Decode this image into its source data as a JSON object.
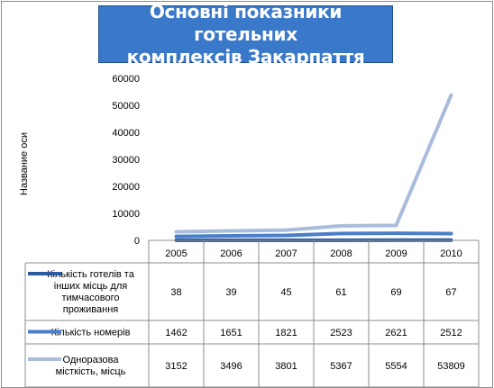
{
  "chart_data": {
    "type": "line",
    "title": "Основні показники готельних\nкомплексів Закарпаття",
    "xlabel": "",
    "ylabel": "Название оси",
    "categories": [
      "2005",
      "2006",
      "2007",
      "2008",
      "2009",
      "2010"
    ],
    "ylim": [
      0,
      60000
    ],
    "yticks": [
      "0",
      "10000",
      "20000",
      "30000",
      "40000",
      "50000",
      "60000"
    ],
    "grid": false,
    "legend": "data-table-below",
    "series": [
      {
        "name": "Кількість готелів та інших місць для тимчасового проживання",
        "values": [
          38,
          39,
          45,
          61,
          69,
          67
        ],
        "color": "#2a5aa0"
      },
      {
        "name": "Кількість номерів",
        "values": [
          1462,
          1651,
          1821,
          2523,
          2621,
          2512
        ],
        "color": "#4a7ec8"
      },
      {
        "name": "Одноразова місткість, місць",
        "values": [
          3152,
          3496,
          3801,
          5367,
          5554,
          53809
        ],
        "color": "#a9bcdc"
      }
    ],
    "table_values": [
      [
        "38",
        "39",
        "45",
        "61",
        "69",
        "67"
      ],
      [
        "1462",
        "1651",
        "1821",
        "2523",
        "2621",
        "2512"
      ],
      [
        "3152",
        "3496",
        "3801",
        "5367",
        "5554",
        "53809"
      ]
    ]
  }
}
